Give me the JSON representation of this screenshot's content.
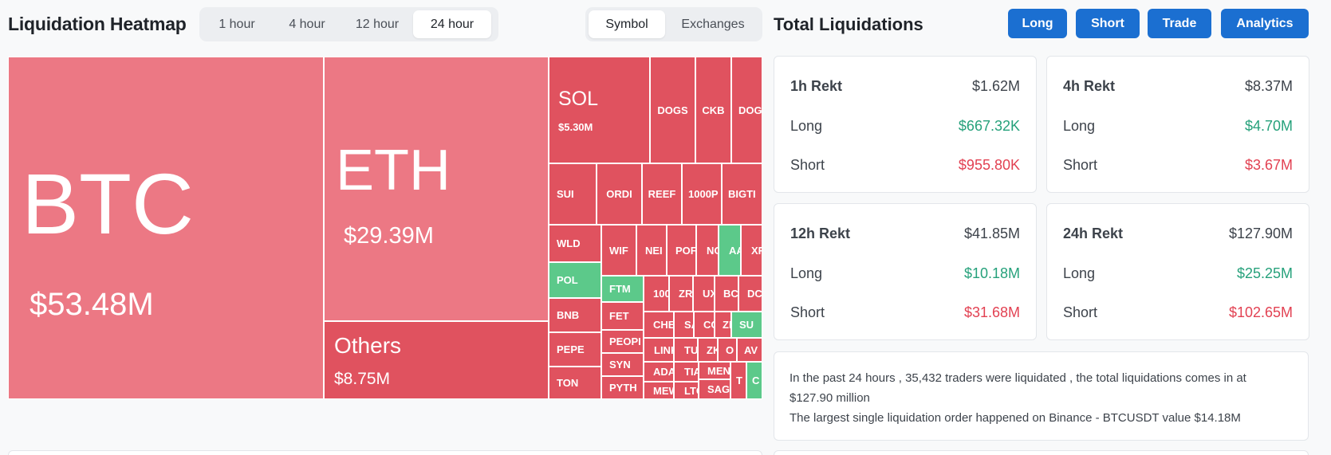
{
  "heatmap": {
    "title": "Liquidation Heatmap",
    "time_tabs": [
      "1 hour",
      "4 hour",
      "12 hour",
      "24 hour"
    ],
    "active_time_tab": "24 hour",
    "view_tabs": [
      "Symbol",
      "Exchanges"
    ],
    "active_view_tab": "Symbol",
    "tiles": {
      "btc": {
        "symbol": "BTC",
        "value": "$53.48M"
      },
      "eth": {
        "symbol": "ETH",
        "value": "$29.39M"
      },
      "others": {
        "symbol": "Others",
        "value": "$8.75M"
      },
      "sol": {
        "symbol": "SOL",
        "value": "$5.30M"
      },
      "small": [
        "DOGS",
        "CKB",
        "DOG",
        "SUI",
        "ORDI",
        "REEF",
        "1000P",
        "BIGTI",
        "WLD",
        "WIF",
        "NEI",
        "POF",
        "NO",
        "AA",
        "XR",
        "POL",
        "FTM",
        "100",
        "ZR",
        "UX",
        "BC",
        "DC",
        "BNB",
        "FET",
        "CHE",
        "SA",
        "CC",
        "ZE",
        "SU",
        "PEPE",
        "PEOPI",
        "LINK",
        "TUF",
        "ZK",
        "O",
        "AV",
        "SYN",
        "ADA",
        "TIA",
        "MEN",
        "TON",
        "PYTH",
        "MEW",
        "LTC",
        "SAG",
        "T",
        "C"
      ]
    }
  },
  "totals": {
    "title": "Total Liquidations",
    "buttons": [
      "Long",
      "Short",
      "Trade",
      "Analytics"
    ],
    "long_label": "Long",
    "short_label": "Short",
    "cards": [
      {
        "title": "1h Rekt",
        "total": "$1.62M",
        "long": "$667.32K",
        "short": "$955.80K"
      },
      {
        "title": "4h Rekt",
        "total": "$8.37M",
        "long": "$4.70M",
        "short": "$3.67M"
      },
      {
        "title": "12h Rekt",
        "total": "$41.85M",
        "long": "$10.18M",
        "short": "$31.68M"
      },
      {
        "title": "24h Rekt",
        "total": "$127.90M",
        "long": "$25.25M",
        "short": "$102.65M"
      }
    ],
    "summary_line1": "In the past 24 hours , 35,432 traders were liquidated , the total liquidations comes in at $127.90 million",
    "summary_line2": "The largest single liquidation order happened on Binance - BTCUSDT value $14.18M"
  },
  "colors": {
    "accent": "#1b6fd1",
    "tile_red": "#e0525f",
    "tile_pink": "#ec7884",
    "tile_green": "#5cc98a",
    "long_green": "#26a17b",
    "short_red": "#e24152"
  }
}
